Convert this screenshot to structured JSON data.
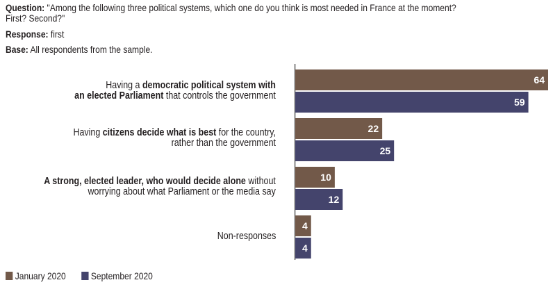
{
  "header": {
    "question_label": "Question:",
    "question_text": " \"Among the following three political systems, which one do you think is most needed in France at the moment?",
    "question_text_2": "First? Second?\"",
    "response_label": "Response:",
    "response_text": " first",
    "base_label": "Base:",
    "base_text": " All respondents from the sample."
  },
  "colors": {
    "january": "#725949",
    "september": "#44446c",
    "axis": "#8a8a8a"
  },
  "chart_data": {
    "type": "bar",
    "orientation": "horizontal",
    "categories": [
      "Having a democratic political system with an elected Parliament that controls the government",
      "Having citizens decide what is best for the country, rather than the government",
      "A strong, elected leader, who would decide alone without worrying about what Parliament or the media say",
      "Non-responses"
    ],
    "category_parts": [
      [
        [
          {
            "t": "Having a ",
            "b": false
          },
          {
            "t": "democratic political system with",
            "b": true
          }
        ],
        [
          {
            "t": "an elected Parliament",
            "b": true
          },
          {
            "t": " that controls the government",
            "b": false
          }
        ]
      ],
      [
        [
          {
            "t": "Having ",
            "b": false
          },
          {
            "t": "citizens decide what is best",
            "b": true
          },
          {
            "t": " for the country,",
            "b": false
          }
        ],
        [
          {
            "t": "rather than the government",
            "b": false
          }
        ]
      ],
      [
        [
          {
            "t": "A strong, elected leader, who would decide alone",
            "b": true
          },
          {
            "t": " without",
            "b": false
          }
        ],
        [
          {
            "t": "worrying about what Parliament or the media say",
            "b": false
          }
        ]
      ],
      [
        [
          {
            "t": "Non-responses",
            "b": false
          }
        ]
      ]
    ],
    "series": [
      {
        "name": "January 2020",
        "values": [
          64,
          22,
          10,
          4
        ]
      },
      {
        "name": "September 2020",
        "values": [
          59,
          25,
          12,
          4
        ]
      }
    ],
    "value_unit": "%",
    "xlim": [
      0,
      64
    ],
    "legend_position": "bottom-left",
    "grid": false
  },
  "legend": {
    "items": [
      "January 2020",
      "September 2020"
    ]
  }
}
